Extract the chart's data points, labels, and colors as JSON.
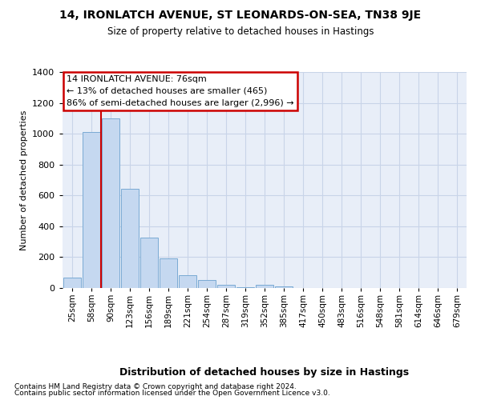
{
  "title1": "14, IRONLATCH AVENUE, ST LEONARDS-ON-SEA, TN38 9JE",
  "title2": "Size of property relative to detached houses in Hastings",
  "xlabel": "Distribution of detached houses by size in Hastings",
  "ylabel": "Number of detached properties",
  "footer1": "Contains HM Land Registry data © Crown copyright and database right 2024.",
  "footer2": "Contains public sector information licensed under the Open Government Licence v3.0.",
  "bar_labels": [
    "25sqm",
    "58sqm",
    "90sqm",
    "123sqm",
    "156sqm",
    "189sqm",
    "221sqm",
    "254sqm",
    "287sqm",
    "319sqm",
    "352sqm",
    "385sqm",
    "417sqm",
    "450sqm",
    "483sqm",
    "516sqm",
    "548sqm",
    "581sqm",
    "614sqm",
    "646sqm",
    "679sqm"
  ],
  "bar_values": [
    65,
    1010,
    1100,
    645,
    325,
    190,
    85,
    50,
    20,
    5,
    20,
    10,
    0,
    0,
    0,
    0,
    0,
    0,
    0,
    0,
    0
  ],
  "bar_color": "#c5d8f0",
  "bar_edgecolor": "#7aaad4",
  "grid_color": "#c8d4e8",
  "background_color": "#e8eef8",
  "red_line_x": 2.0,
  "annotation_line1": "14 IRONLATCH AVENUE: 76sqm",
  "annotation_line2": "← 13% of detached houses are smaller (465)",
  "annotation_line3": "86% of semi-detached houses are larger (2,996) →",
  "annotation_box_color": "#cc0000",
  "ylim": [
    0,
    1400
  ],
  "yticks": [
    0,
    200,
    400,
    600,
    800,
    1000,
    1200,
    1400
  ]
}
